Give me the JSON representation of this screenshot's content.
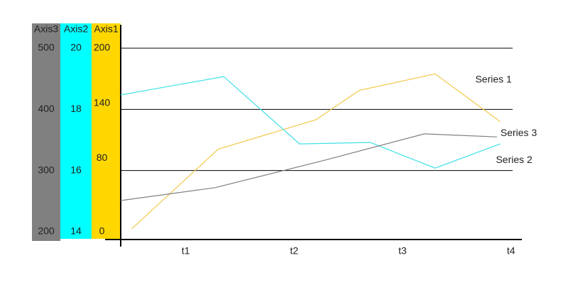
{
  "chart_data": {
    "type": "line",
    "xlim": [
      0.4,
      4.1
    ],
    "xticks": [
      {
        "value": 1,
        "label": "t1"
      },
      {
        "value": 2,
        "label": "t2"
      },
      {
        "value": 3,
        "label": "t3"
      },
      {
        "value": 4,
        "label": "t4"
      }
    ],
    "y_label": "Axis1",
    "ylim": [
      0,
      200
    ],
    "yticks": [
      0,
      80,
      140,
      200
    ],
    "y_axis_color": "#ffd700",
    "y2_label": "Axis2",
    "y2lim": [
      14,
      20
    ],
    "y2ticks": [
      14,
      16,
      18,
      20
    ],
    "y2_axis_color": "#00ffff",
    "y3_label": "Axis3",
    "y3lim": [
      200,
      500
    ],
    "y3ticks": [
      200,
      300,
      400,
      500
    ],
    "y3_axis_color": "#808080",
    "grid": true,
    "series": [
      {
        "name": "Series 1",
        "color": "#f2c94c",
        "axis": "y",
        "x": [
          0.5,
          1.3,
          2.2,
          2.6,
          3.3,
          3.9
        ],
        "values": [
          3,
          90,
          122,
          154,
          172,
          120
        ]
      },
      {
        "name": "Series 2",
        "color": "#40e0e8",
        "axis": "y2",
        "x": [
          0.4,
          1.35,
          2.05,
          2.7,
          3.3,
          3.9
        ],
        "values": [
          18.47,
          19.07,
          16.87,
          16.92,
          16.08,
          16.87
        ]
      },
      {
        "name": "Series 3",
        "color": "#808080",
        "axis": "y3",
        "x": [
          0.4,
          1.27,
          2.26,
          3.2,
          3.87
        ],
        "values": [
          251,
          272,
          316,
          360,
          355
        ]
      }
    ]
  }
}
